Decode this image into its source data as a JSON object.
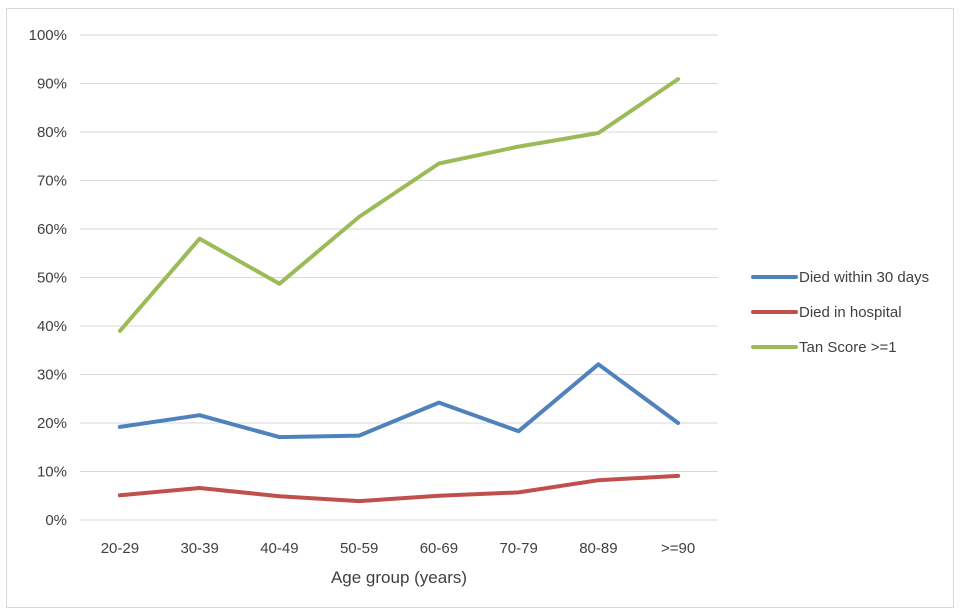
{
  "chart_data": {
    "type": "line",
    "title": "",
    "xlabel": "Age group (years)",
    "ylabel": "",
    "categories": [
      "20-29",
      "30-39",
      "40-49",
      "50-59",
      "60-69",
      "70-79",
      "80-89",
      ">=90"
    ],
    "ylim": [
      0,
      100
    ],
    "yticks": [
      0,
      10,
      20,
      30,
      40,
      50,
      60,
      70,
      80,
      90,
      100
    ],
    "ytick_labels": [
      "0%",
      "10%",
      "20%",
      "30%",
      "40%",
      "50%",
      "60%",
      "70%",
      "80%",
      "90%",
      "100%"
    ],
    "grid": true,
    "legend_position": "right",
    "series": [
      {
        "name": "Died within 30 days",
        "color": "#4f81bd",
        "values": [
          19.2,
          21.6,
          17.1,
          17.4,
          24.2,
          18.3,
          32.1,
          20.0
        ]
      },
      {
        "name": "Died in hospital",
        "color": "#c0504d",
        "values": [
          5.1,
          6.6,
          4.9,
          3.9,
          5.0,
          5.7,
          8.2,
          9.1
        ]
      },
      {
        "name": "Tan Score >=1",
        "color": "#9bbb59",
        "values": [
          39.0,
          58.0,
          48.7,
          62.5,
          73.5,
          77.0,
          79.8,
          90.9
        ]
      }
    ]
  }
}
